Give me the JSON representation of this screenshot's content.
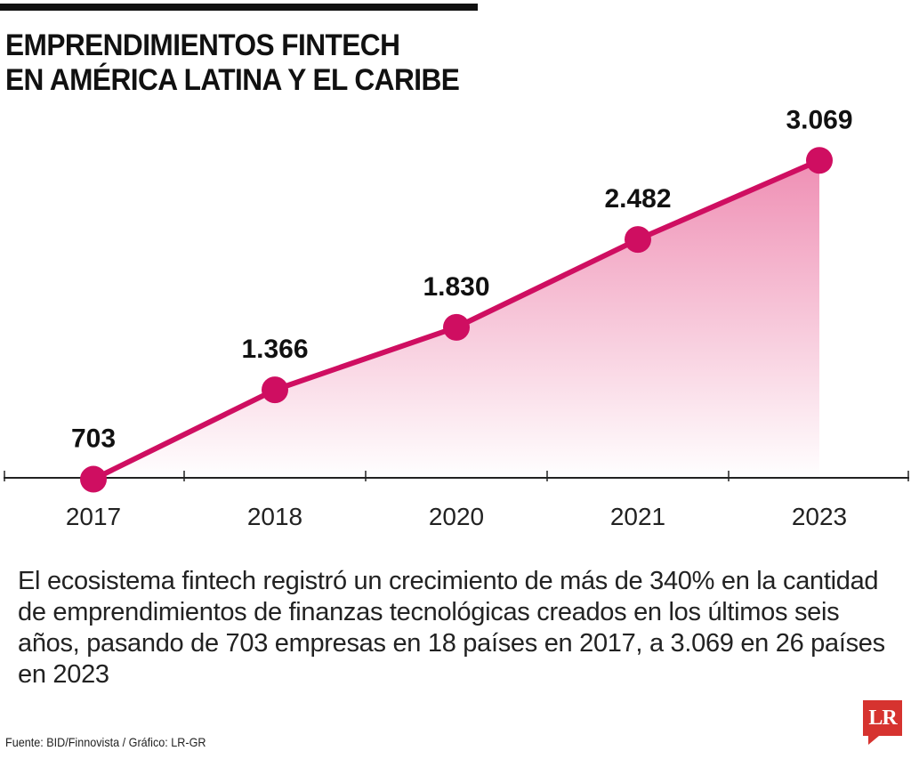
{
  "header": {
    "title_line1": "EMPRENDIMIENTOS FINTECH",
    "title_line2": "EN AMÉRICA LATINA Y EL CARIBE"
  },
  "chart_data": {
    "type": "area",
    "title": "EMPRENDIMIENTOS FINTECH EN AMÉRICA LATINA Y EL CARIBE",
    "categories": [
      "2017",
      "2018",
      "2020",
      "2021",
      "2023"
    ],
    "values": [
      703,
      1366,
      1830,
      2482,
      3069
    ],
    "value_labels": [
      "703",
      "1.366",
      "1.830",
      "2.482",
      "3.069"
    ],
    "xlabel": "",
    "ylabel": "",
    "ylim": [
      0,
      3500
    ],
    "grid": false,
    "colors": {
      "line": "#cf0e61",
      "fill_top": "#ef8fb4",
      "fill_bottom": "#ffffff",
      "axis": "#222222"
    }
  },
  "description": "El ecosistema fintech registró un crecimiento de más de 340% en la cantidad de emprendimientos de finanzas tecnológicas creados en los últimos seis años, pasando de 703 empresas en 18 países en 2017, a 3.069 en 26 países en 2023",
  "footer": {
    "source": "Fuente: BID/Finnovista / Gráfico: LR-GR",
    "logo_text": "LR"
  }
}
